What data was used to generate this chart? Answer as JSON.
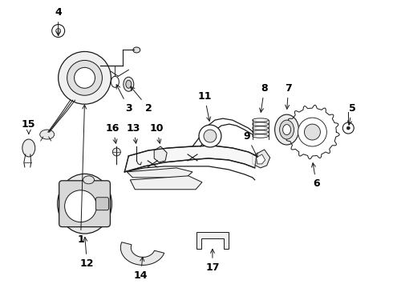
{
  "bg_color": "#ffffff",
  "fig_width": 4.9,
  "fig_height": 3.6,
  "dpi": 100,
  "label_fontsize": 9,
  "label_fontweight": "bold",
  "ec": "#1a1a1a",
  "lw": 0.9
}
